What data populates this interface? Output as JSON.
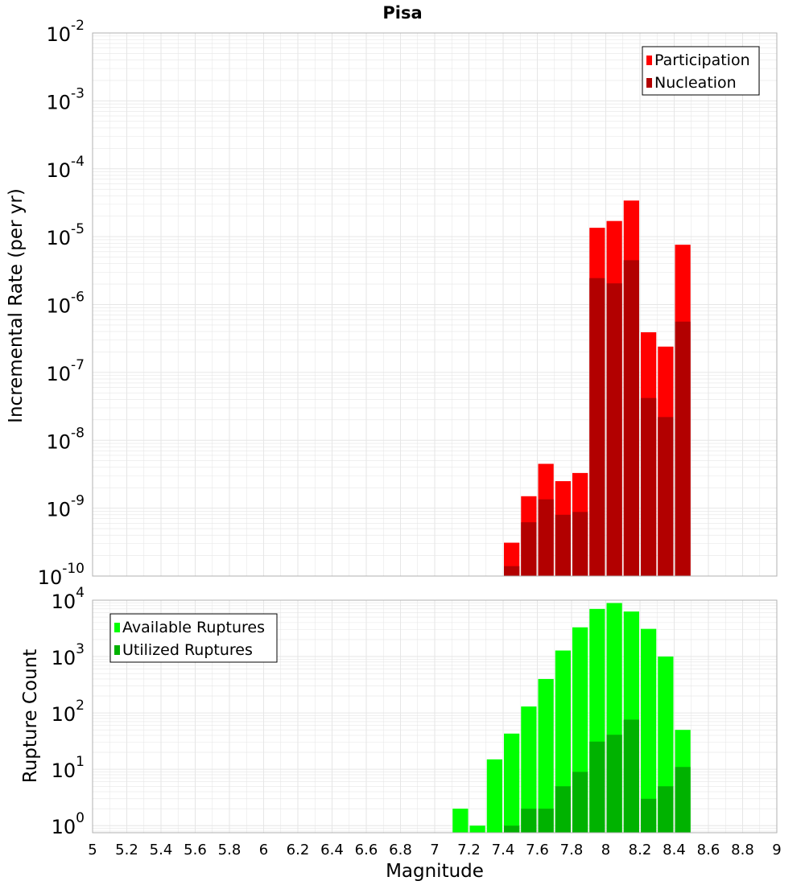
{
  "title": "Pisa",
  "colors": {
    "participation": "#ff0000",
    "nucleation": "#b20000",
    "available": "#00ff00",
    "utilized": "#00b200",
    "grid": "#e6e6e6",
    "axis": "#b0b0b0"
  },
  "chart_data": [
    {
      "type": "bar",
      "name": "top-panel",
      "ylabel": "Incremental Rate (per yr)",
      "yscale": "log",
      "xlim": [
        5,
        9
      ],
      "ylim": [
        1e-10,
        0.01
      ],
      "ytick_exponents": [
        -10,
        -9,
        -8,
        -7,
        -6,
        -5,
        -4,
        -3,
        -2
      ],
      "legend_position": "top-right",
      "bar_width": 0.1,
      "series": [
        {
          "name": "Participation",
          "color_key": "participation",
          "x": [
            7.45,
            7.55,
            7.65,
            7.75,
            7.85,
            7.95,
            8.05,
            8.15,
            8.25,
            8.35,
            8.45
          ],
          "values": [
            3.1e-10,
            1.5e-09,
            4.5e-09,
            2.5e-09,
            3.3e-09,
            1.35e-05,
            1.7e-05,
            3.4e-05,
            3.9e-07,
            2.4e-07,
            7.6e-06
          ]
        },
        {
          "name": "Nucleation",
          "color_key": "nucleation",
          "x": [
            7.45,
            7.55,
            7.65,
            7.75,
            7.85,
            7.95,
            8.05,
            8.15,
            8.25,
            8.35,
            8.45
          ],
          "values": [
            1.4e-10,
            6.2e-10,
            1.35e-09,
            8e-10,
            8.8e-10,
            2.45e-06,
            2.05e-06,
            4.5e-06,
            4.2e-08,
            2.2e-08,
            5.6e-07
          ]
        }
      ]
    },
    {
      "type": "bar",
      "name": "bottom-panel",
      "xlabel": "Magnitude",
      "ylabel": "Rupture Count",
      "yscale": "log",
      "xlim": [
        5,
        9
      ],
      "ylim": [
        0.75,
        10000
      ],
      "ytick_exponents": [
        0,
        1,
        2,
        3,
        4
      ],
      "xticks": [
        "5",
        "5.2",
        "5.4",
        "5.6",
        "5.8",
        "6",
        "6.2",
        "6.4",
        "6.6",
        "6.8",
        "7",
        "7.2",
        "7.4",
        "7.6",
        "7.8",
        "8",
        "8.2",
        "8.4",
        "8.6",
        "8.8",
        "9"
      ],
      "legend_position": "top-left",
      "bar_width": 0.1,
      "series": [
        {
          "name": "Available Ruptures",
          "color_key": "available",
          "x": [
            7.15,
            7.25,
            7.35,
            7.45,
            7.55,
            7.65,
            7.75,
            7.85,
            7.95,
            8.05,
            8.15,
            8.25,
            8.35,
            8.45
          ],
          "values": [
            2,
            1,
            15,
            43,
            130,
            400,
            1280,
            3300,
            7000,
            8900,
            6300,
            3100,
            1000,
            50
          ]
        },
        {
          "name": "Utilized Ruptures",
          "color_key": "utilized",
          "x": [
            7.45,
            7.55,
            7.65,
            7.75,
            7.85,
            7.95,
            8.05,
            8.15,
            8.25,
            8.35,
            8.45
          ],
          "values": [
            1,
            2,
            2,
            5,
            9,
            31,
            41,
            76,
            3,
            5,
            11
          ]
        }
      ]
    }
  ]
}
